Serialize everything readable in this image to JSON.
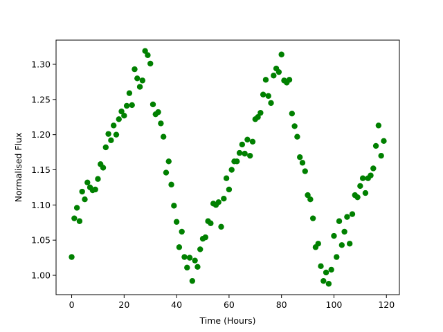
{
  "chart_data": {
    "type": "scatter",
    "xlabel": "Time (Hours)",
    "ylabel": "Normalised Flux",
    "color": "green",
    "x": [
      0,
      1,
      2,
      3,
      4,
      5,
      6,
      7,
      8,
      9,
      10,
      11,
      12,
      13,
      14,
      15,
      16,
      17,
      18,
      19,
      20,
      21,
      22,
      23,
      24,
      25,
      26,
      27,
      28,
      29,
      30,
      31,
      32,
      33,
      34,
      35,
      36,
      37,
      38,
      39,
      40,
      41,
      42,
      43,
      44,
      45,
      46,
      47,
      48,
      49,
      50,
      51,
      52,
      53,
      54,
      55,
      56,
      57,
      58,
      59,
      60,
      61,
      62,
      63,
      64,
      65,
      66,
      67,
      68,
      69,
      70,
      71,
      72,
      73,
      74,
      75,
      76,
      77,
      78,
      79,
      80,
      81,
      82,
      83,
      84,
      85,
      86,
      87,
      88,
      89,
      90,
      91,
      92,
      93,
      94,
      95,
      96,
      97,
      98,
      99,
      100,
      101,
      102,
      103,
      104,
      105,
      106,
      107,
      108,
      109,
      110,
      111,
      112,
      113,
      114,
      115,
      116,
      117,
      118,
      119
    ],
    "values": [
      1.026,
      1.081,
      1.096,
      1.077,
      1.119,
      1.108,
      1.132,
      1.125,
      1.121,
      1.122,
      1.137,
      1.158,
      1.153,
      1.182,
      1.201,
      1.192,
      1.213,
      1.2,
      1.222,
      1.233,
      1.227,
      1.241,
      1.259,
      1.242,
      1.293,
      1.28,
      1.268,
      1.277,
      1.319,
      1.313,
      1.301,
      1.243,
      1.229,
      1.232,
      1.216,
      1.197,
      1.146,
      1.162,
      1.129,
      1.099,
      1.076,
      1.04,
      1.062,
      1.026,
      1.011,
      1.025,
      0.992,
      1.021,
      1.012,
      1.037,
      1.052,
      1.054,
      1.077,
      1.074,
      1.102,
      1.1,
      1.104,
      1.069,
      1.109,
      1.138,
      1.122,
      1.15,
      1.162,
      1.162,
      1.174,
      1.186,
      1.173,
      1.193,
      1.17,
      1.19,
      1.222,
      1.225,
      1.231,
      1.257,
      1.278,
      1.255,
      1.245,
      1.284,
      1.294,
      1.289,
      1.314,
      1.277,
      1.274,
      1.278,
      1.23,
      1.212,
      1.197,
      1.168,
      1.16,
      1.148,
      1.114,
      1.108,
      1.081,
      1.04,
      1.045,
      1.013,
      0.992,
      1.004,
      0.988,
      1.008,
      1.056,
      1.026,
      1.077,
      1.043,
      1.062,
      1.083,
      1.045,
      1.087,
      1.114,
      1.111,
      1.127,
      1.138,
      1.117,
      1.138,
      1.142,
      1.152,
      1.184,
      1.213,
      1.17,
      1.191
    ],
    "xlim": [
      -5.95,
      124.95
    ],
    "ylim": [
      0.9725,
      1.3344
    ],
    "xticks": [
      0,
      20,
      40,
      60,
      80,
      100,
      120
    ],
    "yticks": [
      {
        "value": 1,
        "label": "1.00"
      },
      1.05,
      {
        "value": 1.1,
        "label": "1.10"
      },
      1.15,
      {
        "value": 1.2,
        "label": "1.20"
      },
      1.25,
      {
        "value": 1.3,
        "label": "1.30"
      }
    ]
  }
}
